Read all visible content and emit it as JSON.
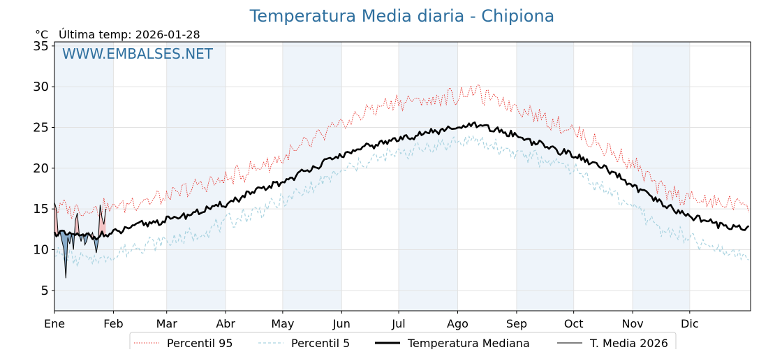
{
  "chart_data": {
    "type": "line",
    "title": "Temperatura Media diaria - Chipiona",
    "ylabel": "°C",
    "subtitle": "Última temp: 2026-01-28",
    "watermark": "WWW.EMBALSES.NET",
    "ylim": [
      2.5,
      35.5
    ],
    "yticks": [
      5,
      10,
      15,
      20,
      25,
      30,
      35
    ],
    "xlim": [
      0,
      366
    ],
    "month_labels": [
      "Ene",
      "Feb",
      "Mar",
      "Abr",
      "May",
      "Jun",
      "Jul",
      "Ago",
      "Sep",
      "Oct",
      "Nov",
      "Dic"
    ],
    "month_starts": [
      0,
      31,
      59,
      90,
      120,
      151,
      181,
      212,
      243,
      273,
      304,
      334
    ],
    "grid": true,
    "legend_position": "bottom-center",
    "colors": {
      "p95": "#e8302a",
      "p5": "#a9d3e0",
      "median": "#000000",
      "current": "#000000",
      "shade_above": "#f4b8b8",
      "shade_below": "#5b8bb5",
      "band": "#eef4fa",
      "title": "#2e6f9e"
    },
    "series": [
      {
        "name": "Percentil 95",
        "style": "dotted",
        "x_day": [
          0,
          10,
          20,
          31,
          45,
          59,
          75,
          90,
          105,
          120,
          135,
          151,
          166,
          181,
          197,
          212,
          220,
          228,
          243,
          258,
          273,
          288,
          304,
          319,
          334,
          349,
          365
        ],
        "values": [
          15.3,
          14.9,
          15.0,
          15.2,
          16.0,
          16.4,
          17.8,
          18.6,
          20.0,
          21.2,
          23.2,
          25.3,
          27.2,
          28.2,
          28.3,
          28.9,
          29.6,
          28.6,
          27.6,
          26.1,
          24.6,
          22.6,
          20.6,
          17.3,
          16.3,
          15.6,
          15.8
        ]
      },
      {
        "name": "Percentil 5",
        "style": "dashed",
        "x_day": [
          0,
          10,
          20,
          31,
          45,
          59,
          75,
          90,
          105,
          120,
          135,
          151,
          166,
          181,
          197,
          212,
          220,
          228,
          243,
          258,
          273,
          288,
          304,
          319,
          334,
          349,
          365
        ],
        "values": [
          9.6,
          8.9,
          8.7,
          9.3,
          10.6,
          11.0,
          11.9,
          13.3,
          14.6,
          15.9,
          17.6,
          19.6,
          20.9,
          21.9,
          22.6,
          23.2,
          23.4,
          22.9,
          21.9,
          20.9,
          19.9,
          17.6,
          15.3,
          12.6,
          11.2,
          9.9,
          9.3
        ]
      },
      {
        "name": "Temperatura Mediana",
        "style": "solid-thick",
        "x_day": [
          0,
          10,
          20,
          31,
          45,
          59,
          75,
          90,
          105,
          120,
          135,
          151,
          166,
          181,
          197,
          212,
          220,
          228,
          243,
          258,
          273,
          288,
          304,
          319,
          334,
          349,
          365
        ],
        "values": [
          12.1,
          11.8,
          11.6,
          12.0,
          13.1,
          13.6,
          14.6,
          15.6,
          17.1,
          18.3,
          20.0,
          21.6,
          22.7,
          23.6,
          24.4,
          24.9,
          25.3,
          24.9,
          24.0,
          22.7,
          21.6,
          20.1,
          17.9,
          15.6,
          14.1,
          13.1,
          12.6
        ]
      },
      {
        "name": "T. Media 2026",
        "style": "solid-thin",
        "x_day": [
          0,
          1,
          2,
          3,
          4,
          5,
          6,
          7,
          8,
          9,
          10,
          11,
          12,
          13,
          14,
          15,
          16,
          17,
          18,
          19,
          20,
          21,
          22,
          23,
          24,
          25,
          26,
          27
        ],
        "values": [
          15.8,
          15.0,
          11.7,
          12.1,
          11.0,
          10.0,
          6.5,
          11.5,
          10.7,
          11.9,
          10.0,
          13.6,
          14.5,
          11.9,
          11.0,
          12.0,
          10.6,
          11.1,
          12.1,
          11.6,
          12.1,
          11.0,
          9.6,
          11.0,
          15.5,
          13.9,
          13.1,
          15.0
        ]
      }
    ]
  }
}
